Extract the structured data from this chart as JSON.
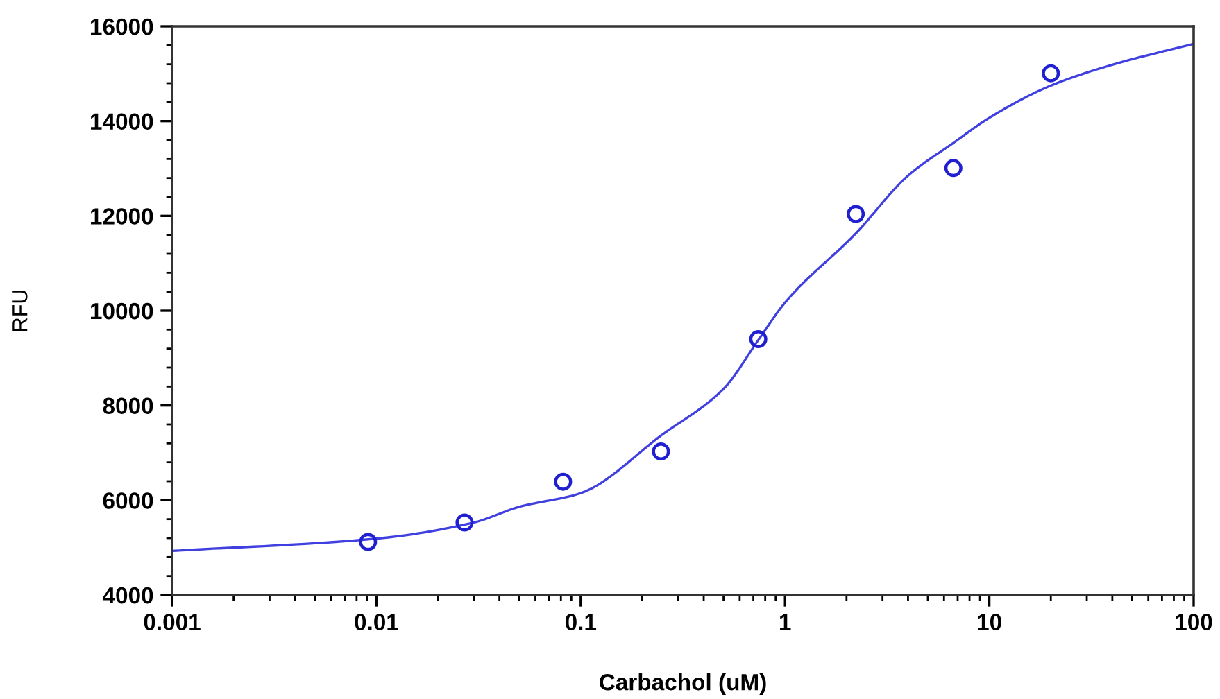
{
  "chart_data": {
    "type": "scatter",
    "xlabel": "Carbachol (uM)",
    "ylabel": "RFU",
    "log": "x",
    "xlim": [
      0.001,
      100
    ],
    "xticks": [
      0.001,
      0.01,
      0.1,
      1,
      10,
      100
    ],
    "ylim": [
      4000,
      16000
    ],
    "yticks": [
      4000,
      6000,
      8000,
      10000,
      12000,
      14000,
      16000
    ],
    "grid": false,
    "series": [
      {
        "color": "#2020d0",
        "marker": "circle",
        "x": [
          0.0091,
          0.027,
          0.082,
          0.247,
          0.74,
          2.22,
          6.67,
          20
        ],
        "values": [
          5120,
          5530,
          6390,
          7030,
          9400,
          12040,
          13010,
          15010
        ]
      },
      {
        "type": "line",
        "color": "#4040e0",
        "marker": "none",
        "line_style": "solid",
        "x": [
          0.001,
          0.01,
          0.03,
          0.05,
          0.1,
          0.25,
          0.5,
          0.74,
          1,
          2.22,
          4,
          6.67,
          10,
          20,
          40,
          100
        ],
        "values": [
          4930,
          5190,
          5530,
          5860,
          6150,
          7380,
          8350,
          9380,
          10170,
          11630,
          12850,
          13540,
          14070,
          14750,
          15190,
          15630
        ]
      }
    ]
  }
}
